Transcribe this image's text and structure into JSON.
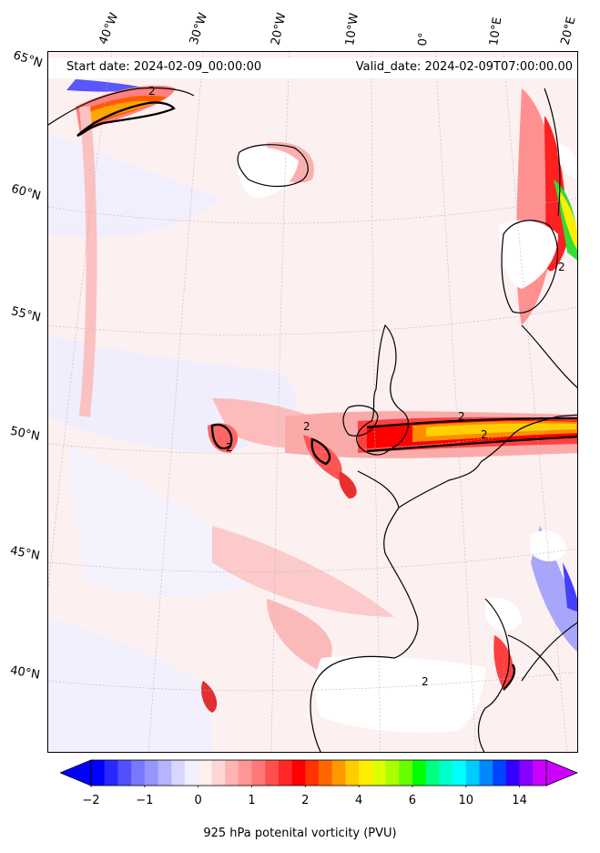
{
  "header": {
    "start_date": "Start date: 2024-02-09_00:00:00",
    "valid_date": "Valid_date: 2024-02-09T07:00:00.00"
  },
  "map": {
    "longitude_labels": [
      "40°W",
      "30°W",
      "20°W",
      "10°W",
      "0°",
      "10°E",
      "20°E"
    ],
    "latitude_labels": [
      "65°N",
      "60°N",
      "55°N",
      "50°N",
      "45°N",
      "40°N"
    ],
    "contour_label": "2",
    "field": "925 hPa potential vorticity",
    "colors": {
      "background_weak": "#fde4e4",
      "light_pink": "#fbbcbc",
      "pink": "#f98a8a",
      "red": "#f03c3c",
      "strong_red": "#ff0000",
      "orange": "#ff8000",
      "yellow": "#ffd700",
      "green": "#33dd33",
      "blue_negative": "#6666ff",
      "coastline": "#000000"
    }
  },
  "colorbar": {
    "label": "925 hPa potenital vorticity (PVU)",
    "tick_labels": [
      "−2",
      "−1",
      "0",
      "1",
      "2",
      "4",
      "6",
      "10",
      "14"
    ],
    "colors": [
      "#0000ff",
      "#2828ff",
      "#5050ff",
      "#7878ff",
      "#9696ff",
      "#b4b4ff",
      "#d6d6ff",
      "#f0f0ff",
      "#fff0f0",
      "#ffd6d6",
      "#ffb4b4",
      "#ff9696",
      "#ff7878",
      "#ff5050",
      "#ff2828",
      "#ff0000",
      "#ff3300",
      "#ff6600",
      "#ff9900",
      "#ffcc00",
      "#ffee00",
      "#ddff00",
      "#aaff00",
      "#66ff00",
      "#00ff00",
      "#00ff80",
      "#00ffcc",
      "#00ffff",
      "#00ccff",
      "#0088ff",
      "#0044ff",
      "#3300ff",
      "#8800ff",
      "#cc00ff"
    ],
    "extend_low_color": "#0000ff",
    "extend_high_color": "#cc00ff"
  }
}
